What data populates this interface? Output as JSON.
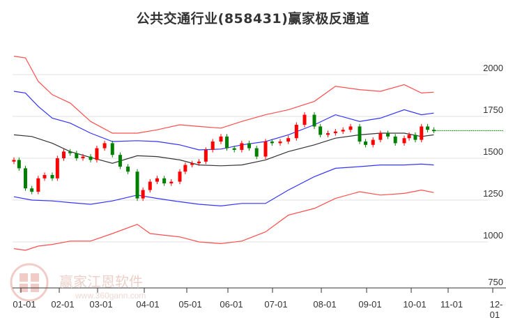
{
  "title": "公共交通行业(858431)赢家极反通道",
  "watermark": {
    "brand": "赢家江恩软件",
    "url": "www.360gann.com"
  },
  "colors": {
    "up": "#ff0000",
    "down": "#008000",
    "outer_band": "#ff4d4d",
    "inner_band": "#3333ff",
    "mid_line": "#333333",
    "last_price_line": "#008000",
    "grid": "#e0e0e0"
  },
  "chart_data": {
    "type": "candlestick_with_bands",
    "title": "公共交通行业(858431)赢家极反通道",
    "xlabel": "",
    "ylabel": "",
    "ylim": [
      750,
      2150
    ],
    "y_ticks": [
      750,
      1000,
      1250,
      1500,
      1750,
      2000
    ],
    "x_ticks": [
      "01-01",
      "02-01",
      "03-01",
      "04-01",
      "05-01",
      "06-01",
      "07-01",
      "08-01",
      "09-01",
      "10-01",
      "11-01",
      "12-01"
    ],
    "grid": true,
    "legend": "none",
    "last_price": 1665,
    "series": [
      {
        "name": "outer_upper",
        "color": "red",
        "x": [
          "01-01",
          "01-10",
          "01-20",
          "02-01",
          "02-15",
          "03-01",
          "03-15",
          "04-01",
          "04-15",
          "05-01",
          "05-15",
          "06-01",
          "06-15",
          "07-01",
          "07-15",
          "08-01",
          "08-15",
          "09-01",
          "09-15",
          "10-01",
          "10-15",
          "10-25"
        ],
        "values": [
          2110,
          2100,
          1960,
          1880,
          1830,
          1720,
          1650,
          1650,
          1670,
          1700,
          1690,
          1680,
          1720,
          1760,
          1790,
          1840,
          1930,
          1910,
          1900,
          1940,
          1890,
          1895
        ]
      },
      {
        "name": "inner_upper",
        "color": "blue",
        "x": [
          "01-01",
          "01-10",
          "01-20",
          "02-01",
          "02-15",
          "03-01",
          "03-15",
          "04-01",
          "04-15",
          "05-01",
          "05-15",
          "06-01",
          "06-15",
          "07-01",
          "07-15",
          "08-01",
          "08-15",
          "09-01",
          "09-15",
          "10-01",
          "10-15",
          "10-25"
        ],
        "values": [
          1900,
          1890,
          1810,
          1740,
          1710,
          1650,
          1600,
          1605,
          1600,
          1580,
          1550,
          1555,
          1580,
          1600,
          1640,
          1700,
          1760,
          1720,
          1740,
          1790,
          1760,
          1770
        ]
      },
      {
        "name": "middle",
        "color": "black",
        "x": [
          "01-01",
          "01-15",
          "02-01",
          "02-15",
          "03-01",
          "03-15",
          "04-01",
          "04-15",
          "05-01",
          "05-15",
          "06-01",
          "06-15",
          "07-01",
          "07-15",
          "08-01",
          "08-15",
          "09-01",
          "09-15",
          "10-01",
          "10-15",
          "10-25"
        ],
        "values": [
          1640,
          1630,
          1590,
          1540,
          1505,
          1470,
          1515,
          1510,
          1490,
          1460,
          1455,
          1460,
          1490,
          1540,
          1580,
          1620,
          1640,
          1650,
          1650,
          1630,
          1640
        ]
      },
      {
        "name": "inner_lower",
        "color": "blue",
        "x": [
          "01-01",
          "01-15",
          "02-01",
          "02-15",
          "03-01",
          "03-15",
          "04-01",
          "04-15",
          "05-01",
          "05-15",
          "06-01",
          "06-15",
          "07-01",
          "07-15",
          "08-01",
          "08-15",
          "09-01",
          "09-15",
          "10-01",
          "10-15",
          "10-25"
        ],
        "values": [
          1270,
          1250,
          1245,
          1235,
          1225,
          1245,
          1280,
          1260,
          1240,
          1225,
          1215,
          1230,
          1230,
          1310,
          1390,
          1440,
          1450,
          1460,
          1460,
          1465,
          1460
        ]
      },
      {
        "name": "outer_lower",
        "color": "red",
        "x": [
          "01-01",
          "01-10",
          "01-20",
          "02-01",
          "02-15",
          "03-01",
          "03-15",
          "04-01",
          "04-10",
          "04-20",
          "05-01",
          "05-15",
          "06-01",
          "06-15",
          "07-01",
          "07-15",
          "08-01",
          "08-15",
          "09-01",
          "09-15",
          "10-01",
          "10-15",
          "10-25"
        ],
        "values": [
          960,
          950,
          975,
          985,
          1005,
          1005,
          1050,
          1105,
          1050,
          1040,
          1030,
          1000,
          990,
          1005,
          1060,
          1160,
          1200,
          1260,
          1300,
          1280,
          1290,
          1310,
          1295
        ]
      },
      {
        "name": "price_close",
        "type": "candlestick",
        "x": [
          "01-01",
          "01-05",
          "01-10",
          "01-15",
          "01-20",
          "01-25",
          "02-01",
          "02-05",
          "02-10",
          "02-15",
          "02-20",
          "02-25",
          "03-01",
          "03-05",
          "03-10",
          "03-15",
          "03-20",
          "03-25",
          "04-01",
          "04-05",
          "04-10",
          "04-15",
          "04-20",
          "04-25",
          "05-01",
          "05-05",
          "05-10",
          "05-15",
          "05-20",
          "05-25",
          "06-01",
          "06-05",
          "06-10",
          "06-15",
          "06-20",
          "06-25",
          "07-01",
          "07-05",
          "07-10",
          "07-15",
          "07-20",
          "07-25",
          "08-01",
          "08-05",
          "08-10",
          "08-15",
          "08-20",
          "08-25",
          "09-01",
          "09-05",
          "09-10",
          "09-15",
          "09-20",
          "09-25",
          "10-01",
          "10-05",
          "10-10",
          "10-15",
          "10-20",
          "10-25"
        ],
        "values": [
          1490,
          1440,
          1320,
          1300,
          1380,
          1400,
          1380,
          1500,
          1540,
          1530,
          1500,
          1510,
          1490,
          1560,
          1590,
          1520,
          1450,
          1420,
          1260,
          1310,
          1360,
          1380,
          1350,
          1360,
          1420,
          1460,
          1470,
          1480,
          1550,
          1600,
          1630,
          1560,
          1550,
          1590,
          1560,
          1510,
          1600,
          1590,
          1600,
          1620,
          1700,
          1760,
          1690,
          1640,
          1650,
          1660,
          1670,
          1690,
          1600,
          1580,
          1610,
          1650,
          1630,
          1590,
          1620,
          1640,
          1610,
          1690,
          1670,
          1665
        ]
      }
    ]
  }
}
